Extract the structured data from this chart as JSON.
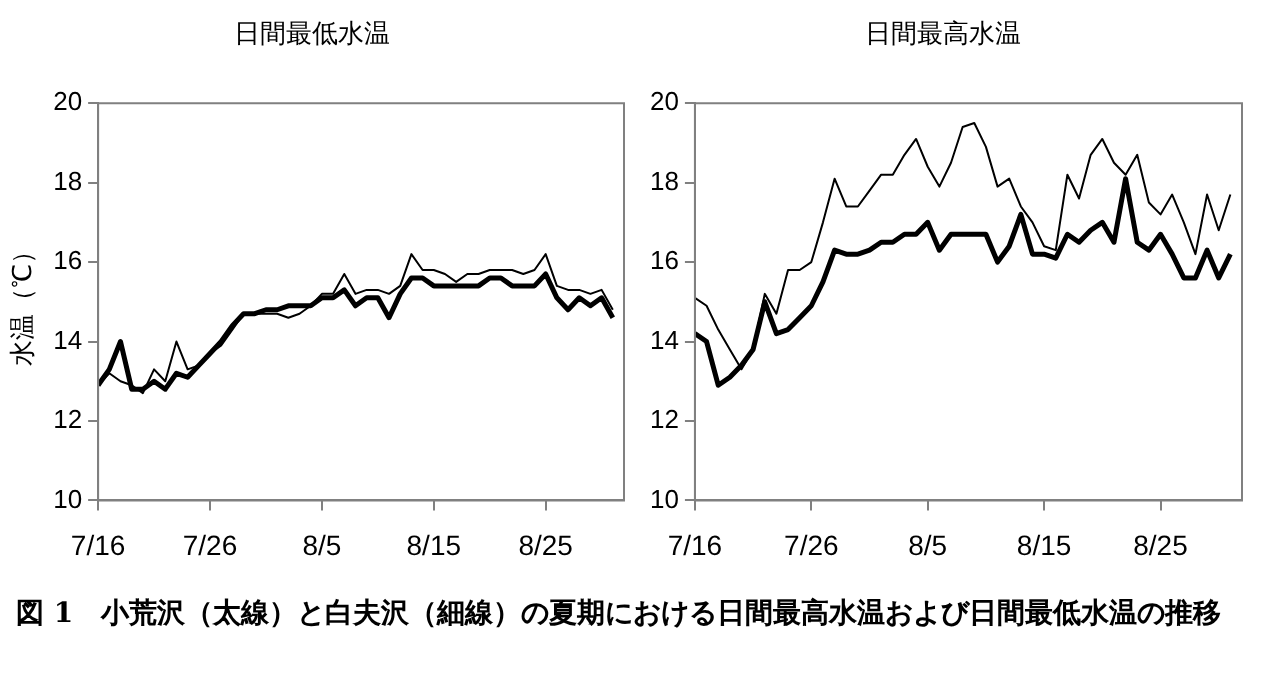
{
  "chart_data": [
    {
      "type": "line",
      "title": "日間最低水温",
      "ylabel": "水温（℃）",
      "grid": false,
      "legend": false,
      "marker": "none",
      "line_style": "solid",
      "x": [
        "--07-16",
        "--07-17",
        "--07-18",
        "--07-19",
        "--07-20",
        "--07-21",
        "--07-22",
        "--07-23",
        "--07-24",
        "--07-25",
        "--07-26",
        "--07-27",
        "--07-28",
        "--07-29",
        "--07-30",
        "--07-31",
        "--08-01",
        "--08-02",
        "--08-03",
        "--08-04",
        "--08-05",
        "--08-06",
        "--08-07",
        "--08-08",
        "--08-09",
        "--08-10",
        "--08-11",
        "--08-12",
        "--08-13",
        "--08-14",
        "--08-15",
        "--08-16",
        "--08-17",
        "--08-18",
        "--08-19",
        "--08-20",
        "--08-21",
        "--08-22",
        "--08-23",
        "--08-24",
        "--08-25",
        "--08-26",
        "--08-27",
        "--08-28",
        "--08-29",
        "--08-30",
        "--08-31"
      ],
      "xlim": [
        "--07-16",
        "--09-01"
      ],
      "xticks": [
        {
          "value": "--07-16",
          "label": "7/16"
        },
        {
          "value": "--07-26",
          "label": "7/26"
        },
        {
          "value": "--08-05",
          "label": "8/5"
        },
        {
          "value": "--08-15",
          "label": "8/15"
        },
        {
          "value": "--08-25",
          "label": "8/25"
        }
      ],
      "ylim": [
        10,
        20
      ],
      "yticks": [
        10,
        12,
        14,
        16,
        18,
        20
      ],
      "series": [
        {
          "color": "#000000",
          "values": [
            12.9,
            13.3,
            14.0,
            12.8,
            12.8,
            13.0,
            12.8,
            13.2,
            13.1,
            13.4,
            13.7,
            14.0,
            14.4,
            14.7,
            14.7,
            14.8,
            14.8,
            14.9,
            14.9,
            14.9,
            15.1,
            15.1,
            15.3,
            14.9,
            15.1,
            15.1,
            14.6,
            15.2,
            15.6,
            15.6,
            15.4,
            15.4,
            15.4,
            15.4,
            15.4,
            15.6,
            15.6,
            15.4,
            15.4,
            15.4,
            15.7,
            15.1,
            14.8,
            15.1,
            14.9,
            15.1,
            14.6
          ]
        },
        {
          "color": "#000000",
          "values": [
            12.9,
            13.2,
            13.0,
            12.9,
            12.7,
            13.3,
            13.0,
            14.0,
            13.3,
            13.4,
            13.7,
            13.9,
            14.3,
            14.7,
            14.7,
            14.7,
            14.7,
            14.6,
            14.7,
            14.9,
            15.2,
            15.2,
            15.7,
            15.2,
            15.3,
            15.3,
            15.2,
            15.4,
            16.2,
            15.8,
            15.8,
            15.7,
            15.5,
            15.7,
            15.7,
            15.8,
            15.8,
            15.8,
            15.7,
            15.8,
            16.2,
            15.4,
            15.3,
            15.3,
            15.2,
            15.3,
            14.8
          ]
        }
      ],
      "annotations": [
        "図 1　小荒沢（太線）と白夫沢（細線）の夏期における日間最高水温および日間最低水温の推移"
      ]
    },
    {
      "type": "line",
      "title": "日間最高水温",
      "grid": false,
      "legend": false,
      "marker": "none",
      "line_style": "solid",
      "x": [
        "--07-16",
        "--07-17",
        "--07-18",
        "--07-19",
        "--07-20",
        "--07-21",
        "--07-22",
        "--07-23",
        "--07-24",
        "--07-25",
        "--07-26",
        "--07-27",
        "--07-28",
        "--07-29",
        "--07-30",
        "--07-31",
        "--08-01",
        "--08-02",
        "--08-03",
        "--08-04",
        "--08-05",
        "--08-06",
        "--08-07",
        "--08-08",
        "--08-09",
        "--08-10",
        "--08-11",
        "--08-12",
        "--08-13",
        "--08-14",
        "--08-15",
        "--08-16",
        "--08-17",
        "--08-18",
        "--08-19",
        "--08-20",
        "--08-21",
        "--08-22",
        "--08-23",
        "--08-24",
        "--08-25",
        "--08-26",
        "--08-27",
        "--08-28",
        "--08-29",
        "--08-30",
        "--08-31"
      ],
      "xlim": [
        "--07-16",
        "--09-01"
      ],
      "xticks": [
        {
          "value": "--07-16",
          "label": "7/16"
        },
        {
          "value": "--07-26",
          "label": "7/26"
        },
        {
          "value": "--08-05",
          "label": "8/5"
        },
        {
          "value": "--08-15",
          "label": "8/15"
        },
        {
          "value": "--08-25",
          "label": "8/25"
        }
      ],
      "ylim": [
        10,
        20
      ],
      "yticks": [
        10,
        12,
        14,
        16,
        18,
        20
      ],
      "series": [
        {
          "color": "#000000",
          "values": [
            14.2,
            14.0,
            12.9,
            13.1,
            13.4,
            13.8,
            15.0,
            14.2,
            14.3,
            14.6,
            14.9,
            15.5,
            16.3,
            16.2,
            16.2,
            16.3,
            16.5,
            16.5,
            16.7,
            16.7,
            17.0,
            16.3,
            16.7,
            16.7,
            16.7,
            16.7,
            16.0,
            16.4,
            17.2,
            16.2,
            16.2,
            16.1,
            16.7,
            16.5,
            16.8,
            17.0,
            16.5,
            18.1,
            16.5,
            16.3,
            16.7,
            16.2,
            15.6,
            15.6,
            16.3,
            15.6,
            16.2
          ]
        },
        {
          "color": "#000000",
          "values": [
            15.1,
            14.9,
            14.3,
            13.8,
            13.3,
            13.8,
            15.2,
            14.7,
            15.8,
            15.8,
            16.0,
            17.0,
            18.1,
            17.4,
            17.4,
            17.8,
            18.2,
            18.2,
            18.7,
            19.1,
            18.4,
            17.9,
            18.5,
            19.4,
            19.5,
            18.9,
            17.9,
            18.1,
            17.4,
            17.0,
            16.4,
            16.3,
            18.2,
            17.6,
            18.7,
            19.1,
            18.5,
            18.2,
            18.7,
            17.5,
            17.2,
            17.7,
            17.0,
            16.2,
            17.7,
            16.8,
            17.7
          ]
        }
      ]
    }
  ]
}
